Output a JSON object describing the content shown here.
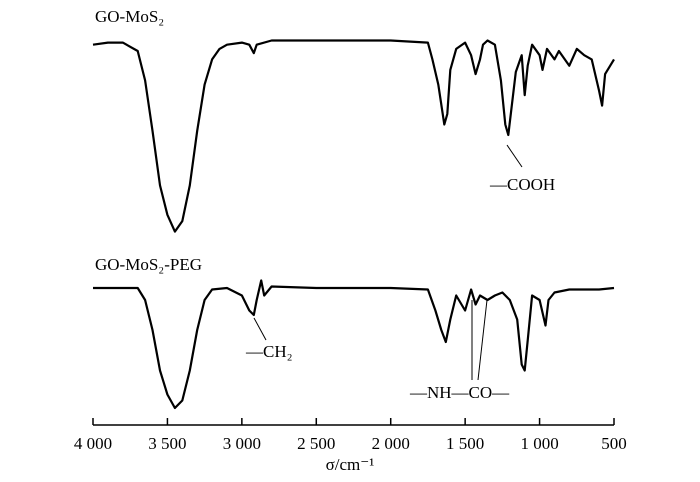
{
  "chart_data": {
    "type": "line",
    "x_label": "σ/cm⁻¹",
    "xlim": [
      4000,
      500
    ],
    "ylim": [
      0,
      100
    ],
    "xticks": [
      {
        "value": 4000,
        "label": "4 000"
      },
      {
        "value": 3500,
        "label": "3 500"
      },
      {
        "value": 3000,
        "label": "3 000"
      },
      {
        "value": 2500,
        "label": "2 500"
      },
      {
        "value": 2000,
        "label": "2 000"
      },
      {
        "value": 1500,
        "label": "1 500"
      },
      {
        "value": 1000,
        "label": "1 000"
      },
      500
    ],
    "series": [
      {
        "name": "GO-MoS₂",
        "color": "#000000",
        "x": [
          4000,
          3900,
          3800,
          3700,
          3650,
          3600,
          3550,
          3500,
          3450,
          3400,
          3350,
          3300,
          3250,
          3200,
          3150,
          3100,
          3000,
          2950,
          2920,
          2900,
          2800,
          2500,
          2000,
          1750,
          1720,
          1680,
          1640,
          1620,
          1600,
          1560,
          1500,
          1460,
          1430,
          1400,
          1380,
          1350,
          1300,
          1260,
          1230,
          1210,
          1190,
          1160,
          1120,
          1100,
          1080,
          1050,
          1000,
          980,
          950,
          900,
          870,
          800,
          750,
          700,
          650,
          600,
          580,
          560,
          500
        ],
        "values": [
          93,
          94,
          94,
          90,
          76,
          52,
          26,
          12,
          4,
          9,
          26,
          52,
          74,
          86,
          91,
          93,
          94,
          93,
          89,
          93,
          95,
          95,
          95,
          94,
          86,
          74,
          55,
          60,
          81,
          91,
          94,
          88,
          79,
          86,
          93,
          95,
          93,
          76,
          55,
          50,
          62,
          80,
          88,
          69,
          83,
          93,
          88,
          81,
          91,
          86,
          90,
          83,
          91,
          88,
          86,
          71,
          64,
          79,
          86
        ]
      },
      {
        "name": "GO-MoS₂-PEG",
        "color": "#000000",
        "x": [
          4000,
          3700,
          3650,
          3600,
          3550,
          3500,
          3450,
          3400,
          3350,
          3300,
          3250,
          3200,
          3100,
          3000,
          2950,
          2920,
          2900,
          2870,
          2850,
          2800,
          2500,
          2000,
          1750,
          1700,
          1660,
          1630,
          1600,
          1560,
          1500,
          1460,
          1430,
          1400,
          1350,
          1300,
          1250,
          1200,
          1150,
          1120,
          1100,
          1080,
          1050,
          1000,
          960,
          940,
          900,
          800,
          700,
          600,
          500
        ],
        "values": [
          88,
          88,
          80,
          60,
          33,
          17,
          8,
          13,
          33,
          60,
          80,
          87,
          88,
          83,
          73,
          70,
          80,
          93,
          83,
          89,
          88,
          88,
          87,
          73,
          60,
          52,
          67,
          83,
          73,
          87,
          77,
          83,
          80,
          83,
          85,
          80,
          67,
          37,
          33,
          53,
          83,
          80,
          63,
          80,
          85,
          87,
          87,
          87,
          88
        ]
      }
    ],
    "annotations": [
      "—COOH",
      "—CH₂",
      "—NH—CO—"
    ]
  }
}
